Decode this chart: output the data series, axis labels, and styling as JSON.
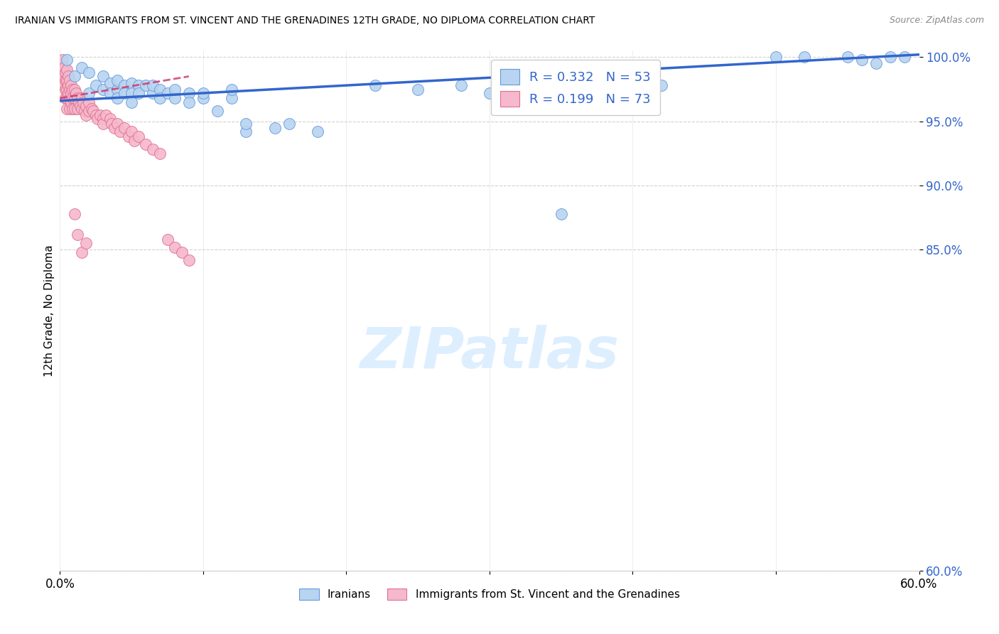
{
  "title": "IRANIAN VS IMMIGRANTS FROM ST. VINCENT AND THE GRENADINES 12TH GRADE, NO DIPLOMA CORRELATION CHART",
  "source": "Source: ZipAtlas.com",
  "ylabel": "12th Grade, No Diploma",
  "x_min": 0.0,
  "x_max": 0.6,
  "y_min": 0.6,
  "y_max": 1.005,
  "y_ticks": [
    0.6,
    0.85,
    0.9,
    0.95,
    1.0
  ],
  "y_tick_labels": [
    "60.0%",
    "85.0%",
    "90.0%",
    "95.0%",
    "100.0%"
  ],
  "x_ticks": [
    0.0,
    0.1,
    0.2,
    0.3,
    0.4,
    0.5,
    0.6
  ],
  "legend_R_blue": "0.332",
  "legend_N_blue": "53",
  "legend_R_pink": "0.199",
  "legend_N_pink": "73",
  "blue_scatter_color": "#b8d4f0",
  "blue_edge_color": "#6699dd",
  "pink_scatter_color": "#f5b8cc",
  "pink_edge_color": "#e07090",
  "blue_line_color": "#3366cc",
  "pink_line_color": "#cc3366",
  "watermark_color": "#ddeeff",
  "iranians_x": [
    0.005,
    0.01,
    0.015,
    0.02,
    0.02,
    0.025,
    0.03,
    0.03,
    0.035,
    0.035,
    0.04,
    0.04,
    0.04,
    0.045,
    0.045,
    0.05,
    0.05,
    0.05,
    0.055,
    0.055,
    0.06,
    0.065,
    0.065,
    0.07,
    0.07,
    0.075,
    0.08,
    0.08,
    0.09,
    0.09,
    0.1,
    0.1,
    0.11,
    0.12,
    0.12,
    0.13,
    0.13,
    0.15,
    0.16,
    0.18,
    0.22,
    0.25,
    0.28,
    0.3,
    0.35,
    0.42,
    0.5,
    0.52,
    0.55,
    0.56,
    0.57,
    0.58,
    0.59
  ],
  "iranians_y": [
    0.998,
    0.985,
    0.992,
    0.988,
    0.972,
    0.978,
    0.985,
    0.975,
    0.98,
    0.972,
    0.975,
    0.982,
    0.968,
    0.978,
    0.972,
    0.98,
    0.972,
    0.965,
    0.978,
    0.972,
    0.978,
    0.972,
    0.978,
    0.975,
    0.968,
    0.972,
    0.968,
    0.975,
    0.972,
    0.965,
    0.968,
    0.972,
    0.958,
    0.968,
    0.975,
    0.942,
    0.948,
    0.945,
    0.948,
    0.942,
    0.978,
    0.975,
    0.978,
    0.972,
    0.878,
    0.978,
    1.0,
    1.0,
    1.0,
    0.998,
    0.995,
    1.0,
    1.0
  ],
  "svg_x": [
    0.002,
    0.002,
    0.002,
    0.003,
    0.003,
    0.003,
    0.004,
    0.004,
    0.004,
    0.004,
    0.005,
    0.005,
    0.005,
    0.005,
    0.005,
    0.006,
    0.006,
    0.006,
    0.007,
    0.007,
    0.007,
    0.007,
    0.008,
    0.008,
    0.008,
    0.009,
    0.009,
    0.009,
    0.01,
    0.01,
    0.01,
    0.011,
    0.012,
    0.012,
    0.013,
    0.014,
    0.015,
    0.015,
    0.016,
    0.017,
    0.018,
    0.018,
    0.02,
    0.02,
    0.022,
    0.023,
    0.025,
    0.026,
    0.028,
    0.03,
    0.03,
    0.032,
    0.035,
    0.036,
    0.038,
    0.04,
    0.042,
    0.045,
    0.048,
    0.05,
    0.052,
    0.055,
    0.06,
    0.065,
    0.07,
    0.075,
    0.08,
    0.085,
    0.09,
    0.01,
    0.012,
    0.015,
    0.018
  ],
  "svg_y": [
    0.998,
    0.99,
    0.985,
    0.992,
    0.985,
    0.978,
    0.988,
    0.982,
    0.975,
    0.968,
    0.99,
    0.982,
    0.975,
    0.968,
    0.96,
    0.985,
    0.978,
    0.972,
    0.982,
    0.975,
    0.968,
    0.96,
    0.978,
    0.972,
    0.965,
    0.975,
    0.968,
    0.96,
    0.975,
    0.968,
    0.96,
    0.972,
    0.968,
    0.96,
    0.965,
    0.962,
    0.968,
    0.96,
    0.965,
    0.958,
    0.962,
    0.955,
    0.958,
    0.965,
    0.96,
    0.958,
    0.955,
    0.952,
    0.955,
    0.952,
    0.948,
    0.955,
    0.952,
    0.948,
    0.945,
    0.948,
    0.942,
    0.945,
    0.938,
    0.942,
    0.935,
    0.938,
    0.932,
    0.928,
    0.925,
    0.858,
    0.852,
    0.848,
    0.842,
    0.878,
    0.862,
    0.848,
    0.855
  ]
}
